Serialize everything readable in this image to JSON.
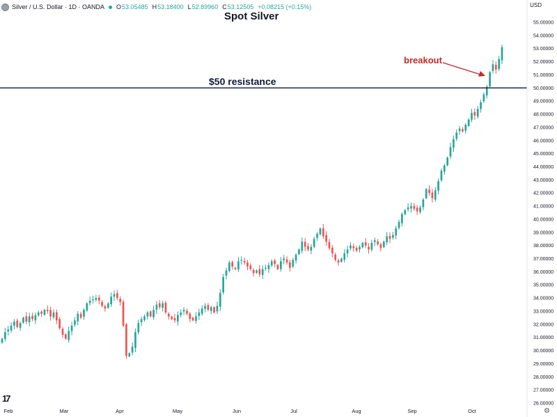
{
  "header": {
    "symbol": "Silver / U.S. Dollar · 1D · OANDA",
    "open_label": "O",
    "open": "53.05485",
    "high_label": "H",
    "high": "53.18400",
    "low_label": "L",
    "low": "52.89960",
    "close_label": "C",
    "close": "53.12505",
    "change": "+0.08215 (+0.15%)",
    "currency": "USD"
  },
  "annotations": {
    "title": "Spot Silver",
    "resistance_label": "$50 resistance",
    "breakout_label": "breakout"
  },
  "icons": {
    "logo": "tradingview-logo",
    "logo_text": "17",
    "settings": "gear-icon"
  },
  "colors": {
    "up": "#26a69a",
    "down": "#ef5350",
    "resistance": "#0e1a3a",
    "annotation": "#c62828"
  },
  "chart_data": {
    "type": "candlestick",
    "title": "Spot Silver",
    "y_axis": {
      "position": "right",
      "range": [
        25.5,
        55.7
      ],
      "ticks": [
        "26.00000",
        "27.00000",
        "28.00000",
        "29.00000",
        "30.00000",
        "31.00000",
        "32.00000",
        "33.00000",
        "34.00000",
        "35.00000",
        "36.00000",
        "37.00000",
        "38.00000",
        "39.00000",
        "40.00000",
        "41.00000",
        "42.00000",
        "43.00000",
        "44.00000",
        "45.00000",
        "46.00000",
        "47.00000",
        "48.00000",
        "49.00000",
        "50.00000",
        "51.00000",
        "52.00000",
        "53.00000",
        "54.00000",
        "55.00000"
      ]
    },
    "x_axis": {
      "labels": [
        "Feb",
        "Mar",
        "Apr",
        "May",
        "Jun",
        "Jul",
        "Aug",
        "Sep",
        "Oct"
      ]
    },
    "resistance_level": 50,
    "grid": false,
    "closes": [
      30.9,
      31.4,
      31.6,
      31.9,
      32.2,
      31.8,
      32.1,
      32.5,
      32.2,
      32.6,
      32.4,
      32.7,
      32.9,
      32.8,
      33.1,
      33.0,
      32.6,
      32.9,
      32.3,
      31.7,
      31.2,
      30.9,
      31.5,
      31.9,
      32.3,
      32.8,
      32.5,
      33.1,
      33.6,
      33.8,
      33.9,
      34.0,
      33.8,
      33.4,
      33.2,
      33.6,
      34.1,
      34.3,
      34.0,
      33.7,
      31.9,
      29.6,
      29.8,
      30.3,
      31.4,
      32.1,
      32.4,
      32.6,
      32.9,
      32.6,
      33.1,
      33.5,
      33.3,
      33.6,
      32.9,
      32.6,
      32.4,
      32.3,
      32.7,
      32.9,
      33.1,
      32.8,
      32.4,
      32.3,
      32.6,
      32.9,
      33.2,
      33.4,
      33.1,
      33.3,
      32.9,
      33.4,
      34.4,
      35.6,
      36.1,
      36.7,
      36.4,
      36.2,
      36.8,
      36.9,
      36.7,
      36.4,
      36.2,
      35.9,
      36.1,
      35.8,
      36.2,
      36.3,
      36.5,
      36.8,
      36.6,
      36.2,
      36.8,
      37.0,
      36.7,
      36.3,
      36.9,
      37.3,
      37.7,
      38.3,
      37.9,
      37.7,
      37.9,
      38.5,
      38.9,
      39.3,
      38.7,
      38.3,
      37.8,
      37.4,
      36.9,
      36.7,
      37.0,
      37.4,
      37.7,
      38.0,
      37.8,
      37.6,
      37.9,
      38.2,
      38.0,
      37.7,
      38.2,
      38.4,
      38.1,
      37.8,
      38.3,
      38.7,
      38.5,
      38.8,
      39.3,
      39.8,
      40.4,
      40.7,
      40.9,
      41.0,
      40.8,
      40.6,
      40.9,
      41.5,
      42.3,
      42.0,
      41.6,
      42.2,
      42.9,
      43.7,
      44.1,
      44.7,
      45.5,
      46.1,
      46.6,
      46.9,
      46.7,
      47.2,
      47.6,
      48.1,
      47.9,
      48.4,
      48.9,
      49.5,
      50.1,
      51.2,
      51.8,
      51.4,
      52.2,
      53.1
    ],
    "last_close": 53.12505
  }
}
